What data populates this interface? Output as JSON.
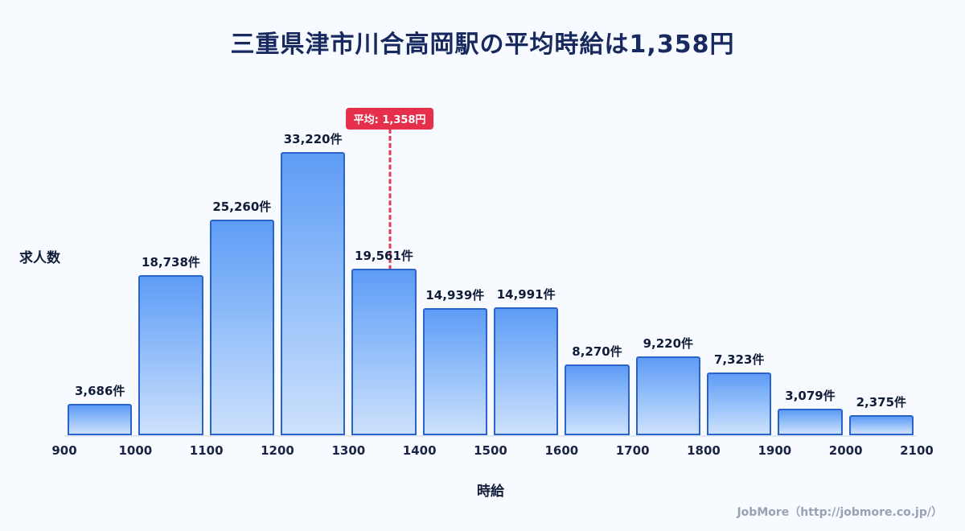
{
  "page": {
    "title": "三重県津市川合高岡駅の平均時給は1,358円",
    "footer": "JobMore（http://jobmore.co.jp/）"
  },
  "chart_data": {
    "type": "bar",
    "title": "三重県津市川合高岡駅の平均時給は1,358円",
    "xlabel": "時給",
    "ylabel": "求人数",
    "x_ticks": [
      "900",
      "1000",
      "1100",
      "1200",
      "1300",
      "1400",
      "1500",
      "1600",
      "1700",
      "1800",
      "1900",
      "2000",
      "2100"
    ],
    "x_range": [
      900,
      2100
    ],
    "bin_edges": [
      900,
      1000,
      1100,
      1200,
      1300,
      1400,
      1500,
      1600,
      1700,
      1800,
      1900,
      2000,
      2100
    ],
    "values": [
      3686,
      18738,
      25260,
      33220,
      19561,
      14939,
      14991,
      8270,
      9220,
      7323,
      3079,
      2375
    ],
    "value_labels": [
      "3,686件",
      "18,738件",
      "25,260件",
      "33,220件",
      "19,561件",
      "14,939件",
      "14,991件",
      "8,270件",
      "9,220件",
      "7,323件",
      "3,079件",
      "2,375件"
    ],
    "ylim": [
      0,
      35000
    ],
    "grid": false,
    "legend": "none",
    "average": {
      "value": 1358,
      "label": "平均: 1,358円"
    },
    "colors": {
      "background": "#f7faff",
      "title": "#17295e",
      "bar_top": "#5e9cf6",
      "bar_bottom": "#cde1fc",
      "bar_border": "#2a63cc",
      "average_accent": "#e6304b",
      "footer_text": "#97a2b3"
    }
  }
}
